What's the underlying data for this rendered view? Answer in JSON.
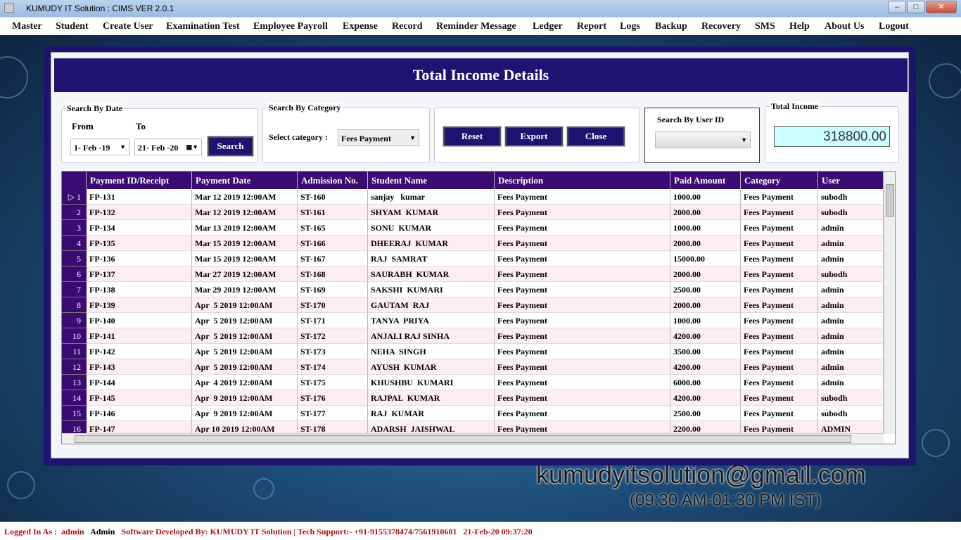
{
  "window": {
    "title": "KUMUDY IT Solution : CIMS VER 2.0.1"
  },
  "menu": [
    "Master",
    "Student",
    "Create User",
    "Examination Test",
    "Employee Payroll",
    "Expense",
    "Record",
    "Reminder Message",
    "Ledger",
    "Report",
    "Logs",
    "Backup",
    "Recovery",
    "SMS",
    "Help",
    "About Us",
    "Logout"
  ],
  "background": {
    "email": "kumudyitsolution@gmail.com",
    "hours": "(09:30 AM-01:30 PM IST)"
  },
  "dialog": {
    "title": "Total Income Details",
    "date_group": {
      "legend": "Search By Date",
      "from_label": "From",
      "to_label": "To",
      "from_value": "1- Feb -19",
      "to_value": "21- Feb -20",
      "search_label": "Search"
    },
    "category_group": {
      "legend": "Search By Category",
      "label": "Select category :",
      "value": "Fees Payment"
    },
    "buttons": {
      "reset": "Reset",
      "export": "Export",
      "close": "Close"
    },
    "user_group": {
      "legend": "Search By User ID",
      "value": ""
    },
    "total_group": {
      "legend": "Total Income",
      "value": "318800.00"
    },
    "columns": [
      "Payment ID/Receipt",
      "Payment Date",
      "Admission No.",
      "Student Name",
      "Description",
      "Paid Amount",
      "Category",
      "User"
    ],
    "rows": [
      [
        "FP-131",
        "Mar 12 2019 12:00AM",
        "ST-160",
        "sanjay   kumar",
        "Fees Payment",
        "1000.00",
        "Fees Payment",
        "subodh"
      ],
      [
        "FP-132",
        "Mar 12 2019 12:00AM",
        "ST-161",
        "SHYAM  KUMAR",
        "Fees Payment",
        "2000.00",
        "Fees Payment",
        "subodh"
      ],
      [
        "FP-134",
        "Mar 13 2019 12:00AM",
        "ST-165",
        "SONU  KUMAR",
        "Fees Payment",
        "1000.00",
        "Fees Payment",
        "admin"
      ],
      [
        "FP-135",
        "Mar 15 2019 12:00AM",
        "ST-166",
        "DHEERAJ  KUMAR",
        "Fees Payment",
        "2000.00",
        "Fees Payment",
        "admin"
      ],
      [
        "FP-136",
        "Mar 15 2019 12:00AM",
        "ST-167",
        "RAJ  SAMRAT",
        "Fees Payment",
        "15000.00",
        "Fees Payment",
        "admin"
      ],
      [
        "FP-137",
        "Mar 27 2019 12:00AM",
        "ST-168",
        "SAURABH  KUMAR",
        "Fees Payment",
        "2000.00",
        "Fees Payment",
        "subodh"
      ],
      [
        "FP-138",
        "Mar 29 2019 12:00AM",
        "ST-169",
        "SAKSHI  KUMARI",
        "Fees Payment",
        "2500.00",
        "Fees Payment",
        "admin"
      ],
      [
        "FP-139",
        "Apr  5 2019 12:00AM",
        "ST-170",
        "GAUTAM  RAJ",
        "Fees Payment",
        "2000.00",
        "Fees Payment",
        "admin"
      ],
      [
        "FP-140",
        "Apr  5 2019 12:00AM",
        "ST-171",
        "TANYA  PRIYA",
        "Fees Payment",
        "1000.00",
        "Fees Payment",
        "admin"
      ],
      [
        "FP-141",
        "Apr  5 2019 12:00AM",
        "ST-172",
        "ANJALI RAJ SINHA",
        "Fees Payment",
        "4200.00",
        "Fees Payment",
        "admin"
      ],
      [
        "FP-142",
        "Apr  5 2019 12:00AM",
        "ST-173",
        "NEHA  SINGH",
        "Fees Payment",
        "3500.00",
        "Fees Payment",
        "admin"
      ],
      [
        "FP-143",
        "Apr  5 2019 12:00AM",
        "ST-174",
        "AYUSH  KUMAR",
        "Fees Payment",
        "4200.00",
        "Fees Payment",
        "admin"
      ],
      [
        "FP-144",
        "Apr  4 2019 12:00AM",
        "ST-175",
        "KHUSHBU  KUMARI",
        "Fees Payment",
        "6000.00",
        "Fees Payment",
        "admin"
      ],
      [
        "FP-145",
        "Apr  9 2019 12:00AM",
        "ST-176",
        "RAJPAL  KUMAR",
        "Fees Payment",
        "4200.00",
        "Fees Payment",
        "subodh"
      ],
      [
        "FP-146",
        "Apr  9 2019 12:00AM",
        "ST-177",
        "RAJ  KUMAR",
        "Fees Payment",
        "2500.00",
        "Fees Payment",
        "subodh"
      ],
      [
        "FP-147",
        "Apr 10 2019 12:00AM",
        "ST-178",
        "ADARSH  JAISHWAL",
        "Fees Payment",
        "2200.00",
        "Fees Payment",
        "ADMIN"
      ]
    ]
  },
  "status": {
    "logged_label": "Logged In As :",
    "user": "admin",
    "role": "Admin",
    "developer": "Software Developed By: KUMUDY IT Solution | Tech Support:- +91-9155378474/7561910681",
    "datetime": "21-Feb-20 09:37:20"
  },
  "colors": {
    "navy": "#1c1470",
    "grid_header": "#3a0b72",
    "alt_row": "#fdeef3",
    "total_bg": "#ccffff",
    "status_text": "#b01010"
  }
}
